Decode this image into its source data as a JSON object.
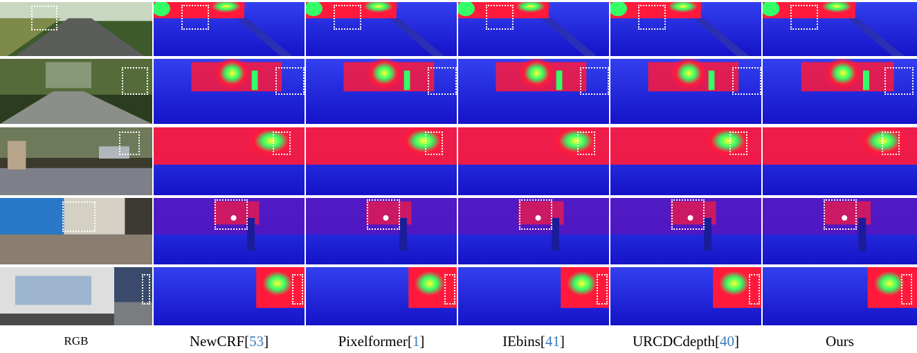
{
  "figure": {
    "columns": [
      {
        "label": "RGB",
        "ref": ""
      },
      {
        "label": "NewCRF",
        "ref": "53"
      },
      {
        "label": "Pixelformer",
        "ref": "1"
      },
      {
        "label": "IEbins",
        "ref": "41"
      },
      {
        "label": "URCDCdepth",
        "ref": "40"
      },
      {
        "label": "Ours",
        "ref": ""
      }
    ],
    "rows": [
      {
        "scene": "road-hedge"
      },
      {
        "scene": "forest-road"
      },
      {
        "scene": "street-cars"
      },
      {
        "scene": "building-bikes"
      },
      {
        "scene": "truck-street"
      }
    ],
    "colors": {
      "near": "#1b1fd9",
      "mid": "#ff1a3c",
      "far": "#33ff66",
      "farthest": "#ffff33",
      "box": "#ffffff",
      "ref": "#3a7bbf"
    }
  }
}
